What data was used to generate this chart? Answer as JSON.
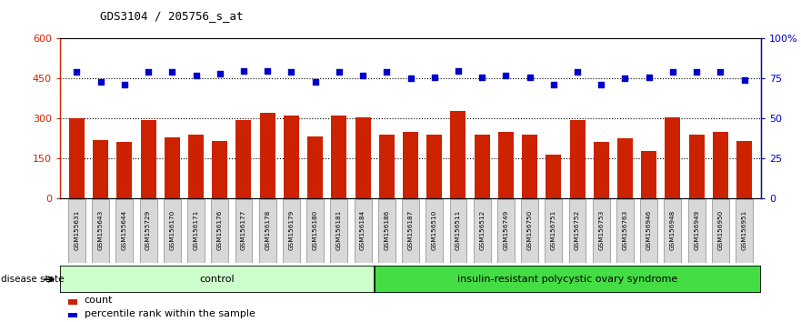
{
  "title": "GDS3104 / 205756_s_at",
  "samples": [
    "GSM155631",
    "GSM155643",
    "GSM155644",
    "GSM155729",
    "GSM156170",
    "GSM156171",
    "GSM156176",
    "GSM156177",
    "GSM156178",
    "GSM156179",
    "GSM156180",
    "GSM156181",
    "GSM156184",
    "GSM156186",
    "GSM156187",
    "GSM156510",
    "GSM156511",
    "GSM156512",
    "GSM156749",
    "GSM156750",
    "GSM156751",
    "GSM156752",
    "GSM156753",
    "GSM156763",
    "GSM156946",
    "GSM156948",
    "GSM156949",
    "GSM156950",
    "GSM156951"
  ],
  "counts": [
    300,
    218,
    210,
    295,
    230,
    240,
    215,
    295,
    320,
    310,
    233,
    312,
    305,
    238,
    248,
    238,
    328,
    238,
    248,
    238,
    163,
    292,
    210,
    225,
    178,
    305,
    238,
    248,
    215
  ],
  "percentile_ranks": [
    79,
    73,
    71,
    79,
    79,
    77,
    78,
    80,
    80,
    79,
    73,
    79,
    77,
    79,
    75,
    76,
    80,
    76,
    77,
    76,
    71,
    79,
    71,
    75,
    76,
    79,
    79,
    79,
    74
  ],
  "group_labels": [
    "control",
    "insulin-resistant polycystic ovary syndrome"
  ],
  "group_sizes": [
    13,
    16
  ],
  "group_color1": "#ccffcc",
  "group_color2": "#44ee44",
  "bar_color": "#cc2200",
  "dot_color": "#0000cc",
  "ylim_left": [
    0,
    600
  ],
  "ylim_right": [
    0,
    100
  ],
  "yticks_left": [
    0,
    150,
    300,
    450,
    600
  ],
  "yticks_right": [
    0,
    25,
    50,
    75,
    100
  ],
  "ytick_labels_left": [
    "0",
    "150",
    "300",
    "450",
    "600"
  ],
  "ytick_labels_right": [
    "0",
    "25",
    "50",
    "75",
    "100%"
  ],
  "hlines": [
    150,
    300,
    450
  ],
  "bg_color": "#ffffff",
  "title_fontsize": 9,
  "legend_count": "count",
  "legend_pct": "percentile rank within the sample"
}
